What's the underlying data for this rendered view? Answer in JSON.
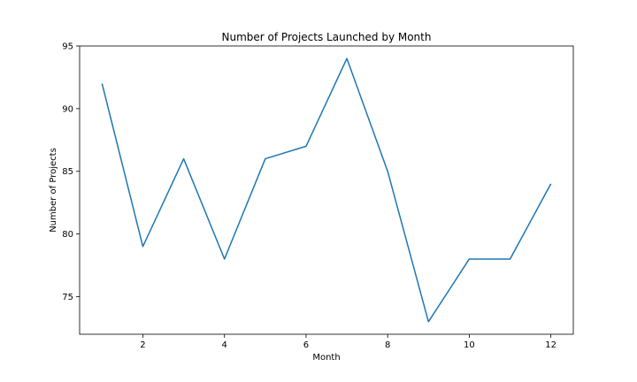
{
  "chart_data": {
    "type": "line",
    "title": "Number of Projects Launched by Month",
    "xlabel": "Month",
    "ylabel": "Number of Projects",
    "x": [
      1,
      2,
      3,
      4,
      5,
      6,
      7,
      8,
      9,
      10,
      11,
      12
    ],
    "series": [
      {
        "values": [
          92,
          79,
          86,
          78,
          86,
          87,
          94,
          85,
          73,
          78,
          78,
          84
        ],
        "color": "#1f77b4"
      }
    ],
    "xlim": [
      0.45,
      12.55
    ],
    "ylim": [
      72.0,
      95.0
    ],
    "xticks": [
      2,
      4,
      6,
      8,
      10,
      12
    ],
    "yticks": [
      75,
      80,
      85,
      90,
      95
    ],
    "grid": false,
    "legend": "none"
  }
}
